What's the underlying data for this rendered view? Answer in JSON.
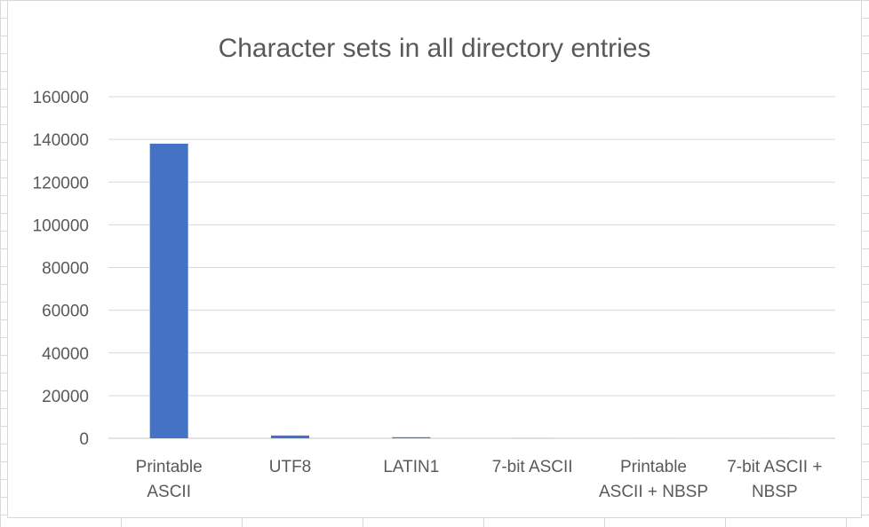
{
  "chart_data": {
    "type": "bar",
    "title": "Character sets in all directory entries",
    "categories": [
      [
        "Printable",
        "ASCII"
      ],
      [
        "UTF8"
      ],
      [
        "LATIN1"
      ],
      [
        "7-bit ASCII"
      ],
      [
        "Printable",
        "ASCII + NBSP"
      ],
      [
        "7-bit ASCII +",
        "NBSP"
      ]
    ],
    "values": [
      138000,
      1300,
      500,
      30,
      10,
      5
    ],
    "ylim": [
      0,
      160000
    ],
    "yticks": [
      "0",
      "20000",
      "40000",
      "60000",
      "80000",
      "100000",
      "120000",
      "140000",
      "160000"
    ],
    "ytick_values": [
      0,
      20000,
      40000,
      60000,
      80000,
      100000,
      120000,
      140000,
      160000
    ],
    "xlabel": "",
    "ylabel": "",
    "grid": true,
    "legend": "none",
    "bar_color": "#4472C4",
    "grid_color": "#d9d9d9"
  }
}
